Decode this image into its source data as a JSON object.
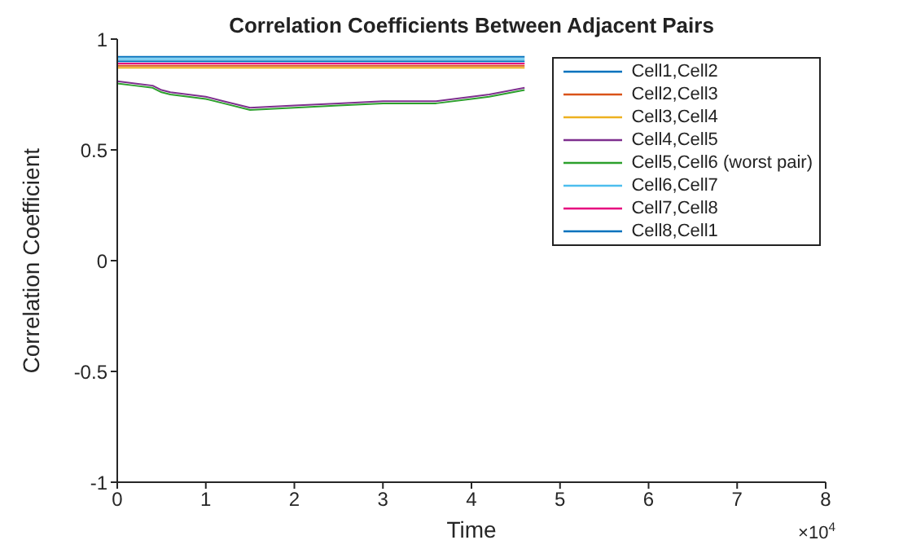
{
  "chart_data": {
    "type": "line",
    "title": "Correlation Coefficients Between Adjacent Pairs",
    "xlabel": "Time",
    "ylabel": "Correlation Coefficient",
    "annotations": [
      "×10$^{4}$"
    ],
    "x": [
      0,
      0.2,
      0.4,
      0.5,
      0.6,
      0.8,
      1,
      1.2,
      1.5,
      2,
      2.5,
      3,
      3.6,
      4,
      4.2,
      4.6
    ],
    "xlim": [
      0,
      8
    ],
    "xticks": [
      0,
      1,
      2,
      3,
      4,
      5,
      6,
      7,
      8
    ],
    "ylim": [
      -1,
      1
    ],
    "yticks": [
      -1,
      -0.5,
      0,
      0.5,
      1
    ],
    "grid": false,
    "legend": "top right",
    "marker": "none",
    "line_style": "solid",
    "series": [
      {
        "name": "Cell1,Cell2",
        "color": "#0072bd",
        "values": [
          0.92,
          0.92,
          0.92,
          0.92,
          0.92,
          0.92,
          0.92,
          0.92,
          0.92,
          0.92,
          0.92,
          0.92,
          0.92,
          0.92,
          0.92,
          0.92
        ]
      },
      {
        "name": "Cell2,Cell3",
        "color": "#d95319",
        "values": [
          0.88,
          0.88,
          0.88,
          0.88,
          0.88,
          0.88,
          0.88,
          0.88,
          0.88,
          0.88,
          0.88,
          0.88,
          0.88,
          0.88,
          0.88,
          0.88
        ]
      },
      {
        "name": "Cell3,Cell4",
        "color": "#edb120",
        "values": [
          0.87,
          0.87,
          0.87,
          0.87,
          0.87,
          0.87,
          0.87,
          0.87,
          0.87,
          0.87,
          0.87,
          0.87,
          0.87,
          0.87,
          0.87,
          0.87
        ]
      },
      {
        "name": "Cell4,Cell5",
        "color": "#7e2f8e",
        "values": [
          0.81,
          0.8,
          0.79,
          0.77,
          0.76,
          0.75,
          0.74,
          0.72,
          0.69,
          0.7,
          0.71,
          0.72,
          0.72,
          0.74,
          0.75,
          0.78
        ]
      },
      {
        "name": "Cell5,Cell6 (worst pair)",
        "color": "#2ca02c",
        "values": [
          0.8,
          0.79,
          0.78,
          0.76,
          0.75,
          0.74,
          0.73,
          0.71,
          0.68,
          0.69,
          0.7,
          0.71,
          0.71,
          0.73,
          0.74,
          0.77
        ]
      },
      {
        "name": "Cell6,Cell7",
        "color": "#4dbeee",
        "values": [
          0.91,
          0.91,
          0.91,
          0.91,
          0.91,
          0.91,
          0.91,
          0.91,
          0.91,
          0.91,
          0.91,
          0.91,
          0.91,
          0.91,
          0.91,
          0.91
        ]
      },
      {
        "name": "Cell7,Cell8",
        "color": "#e6007e",
        "values": [
          0.89,
          0.89,
          0.89,
          0.89,
          0.89,
          0.89,
          0.89,
          0.89,
          0.89,
          0.89,
          0.89,
          0.89,
          0.89,
          0.89,
          0.89,
          0.89
        ]
      },
      {
        "name": "Cell8,Cell1",
        "color": "#0072bd",
        "values": [
          0.9,
          0.9,
          0.9,
          0.9,
          0.9,
          0.9,
          0.9,
          0.9,
          0.9,
          0.9,
          0.9,
          0.9,
          0.9,
          0.9,
          0.9,
          0.9
        ]
      }
    ]
  }
}
